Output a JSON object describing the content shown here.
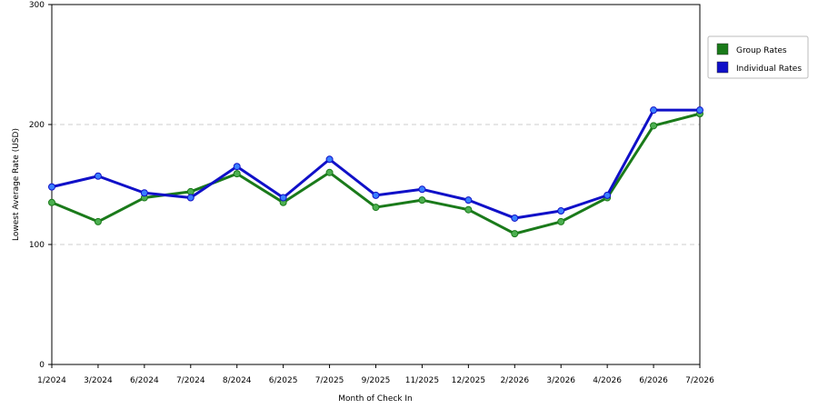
{
  "chart_data": {
    "type": "line",
    "xlabel": "Month of Check In",
    "ylabel": "Lowest Average Rate (USD)",
    "ylim": [
      0,
      300
    ],
    "yticks": [
      0,
      100,
      200,
      300
    ],
    "grid": "horizontal dashed",
    "legend_position": "right",
    "categories": [
      "1/2024",
      "3/2024",
      "6/2024",
      "7/2024",
      "8/2024",
      "6/2025",
      "7/2025",
      "9/2025",
      "11/2025",
      "12/2025",
      "2/2026",
      "3/2026",
      "4/2026",
      "6/2026",
      "7/2026"
    ],
    "series": [
      {
        "name": "Group Rates",
        "color": "#1a7a1a",
        "marker_color": "#4caf50",
        "values": [
          135,
          119,
          139,
          144,
          159,
          135,
          160,
          131,
          137,
          129,
          109,
          119,
          139,
          199,
          209
        ]
      },
      {
        "name": "Individual Rates",
        "color": "#1010c8",
        "marker_color": "#3a7fff",
        "values": [
          148,
          157,
          143,
          139,
          165,
          139,
          171,
          141,
          146,
          137,
          122,
          128,
          141,
          212,
          212
        ]
      }
    ]
  }
}
